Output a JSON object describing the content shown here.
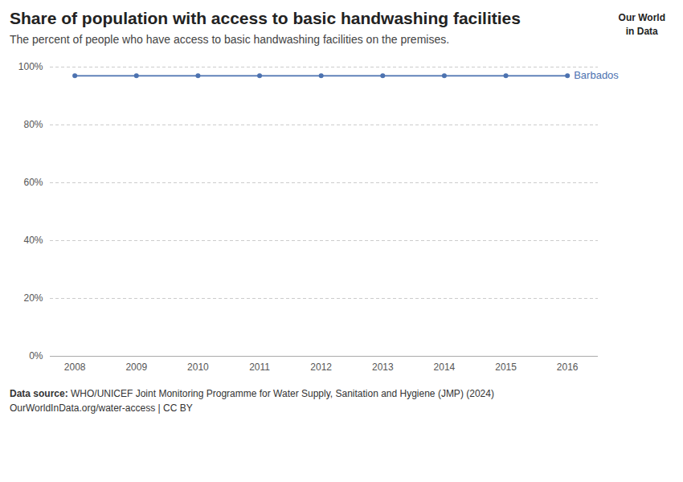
{
  "chart_data": {
    "type": "line",
    "title": "Share of population with access to basic handwashing facilities",
    "subtitle": "The percent of people who have access to basic handwashing facilities on the premises.",
    "x": [
      2008,
      2009,
      2010,
      2011,
      2012,
      2013,
      2014,
      2015,
      2016
    ],
    "series": [
      {
        "name": "Barbados",
        "color": "#4C72B0",
        "marker": "circle",
        "values": [
          97.0,
          97.0,
          97.0,
          97.0,
          97.0,
          97.0,
          97.0,
          97.0,
          97.0
        ]
      }
    ],
    "xlim": [
      2007.6,
      2016.5
    ],
    "xticks": [
      2008,
      2009,
      2010,
      2011,
      2012,
      2013,
      2014,
      2015,
      2016
    ],
    "ylim": [
      0,
      100
    ],
    "yticks": [
      {
        "value": 0,
        "label": "0%"
      },
      {
        "value": 20,
        "label": "20%"
      },
      {
        "value": 40,
        "label": "40%"
      },
      {
        "value": 60,
        "label": "60%"
      },
      {
        "value": 80,
        "label": "80%"
      },
      {
        "value": 100,
        "label": "100%"
      }
    ],
    "grid": true,
    "source_label": "Data source:",
    "source": " WHO/UNICEF Joint Monitoring Programme for Water Supply, Sanitation and Hygiene (JMP) (2024)",
    "footer": "OurWorldInData.org/water-access | CC BY",
    "logo": [
      "Our World",
      "in Data"
    ]
  }
}
